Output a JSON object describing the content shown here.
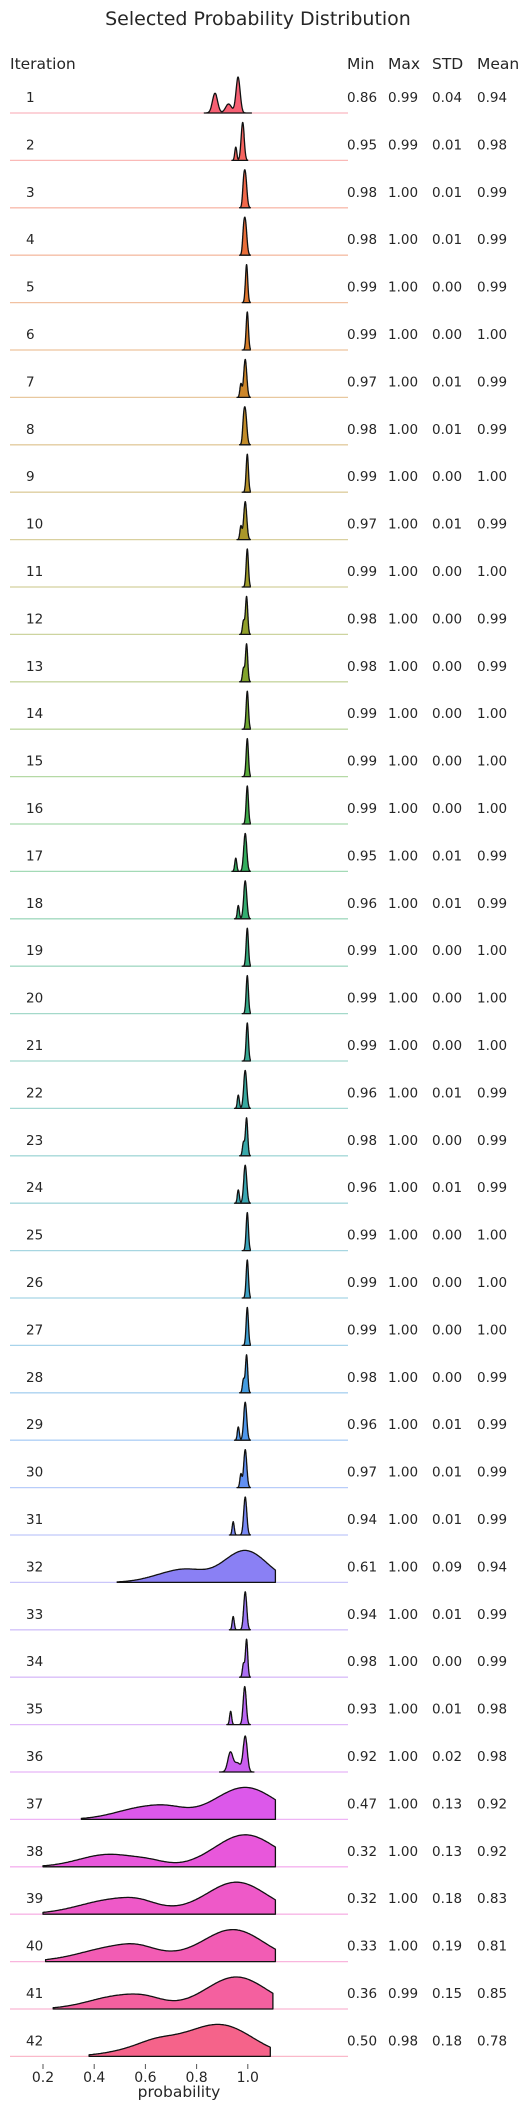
{
  "chart_data": {
    "type": "ridgeline",
    "title": "Selected Probability Distribution",
    "xlabel": "probability",
    "row_header": "Iteration",
    "stat_headers": [
      "Min",
      "Max",
      "STD",
      "Mean"
    ],
    "xlim": [
      0.15,
      1.45
    ],
    "xticks": [
      0.2,
      0.4,
      0.6,
      0.8,
      1.0
    ],
    "xtick_labels": [
      "0.2",
      "0.4",
      "0.6",
      "0.8",
      "1.0"
    ],
    "grid": false,
    "rows": [
      {
        "iteration": "1",
        "min": "0.86",
        "max": "0.99",
        "std": "0.04",
        "mean": "0.94",
        "color": "#f66073"
      },
      {
        "iteration": "2",
        "min": "0.95",
        "max": "0.99",
        "std": "0.01",
        "mean": "0.98",
        "color": "#f5635f"
      },
      {
        "iteration": "3",
        "min": "0.98",
        "max": "1.00",
        "std": "0.01",
        "mean": "0.99",
        "color": "#f0684a"
      },
      {
        "iteration": "4",
        "min": "0.98",
        "max": "1.00",
        "std": "0.01",
        "mean": "0.99",
        "color": "#e96e3a"
      },
      {
        "iteration": "5",
        "min": "0.99",
        "max": "1.00",
        "std": "0.00",
        "mean": "0.99",
        "color": "#e0762e"
      },
      {
        "iteration": "6",
        "min": "0.99",
        "max": "1.00",
        "std": "0.00",
        "mean": "1.00",
        "color": "#d67e2a"
      },
      {
        "iteration": "7",
        "min": "0.97",
        "max": "1.00",
        "std": "0.01",
        "mean": "0.99",
        "color": "#cc862a"
      },
      {
        "iteration": "8",
        "min": "0.98",
        "max": "1.00",
        "std": "0.01",
        "mean": "0.99",
        "color": "#c28c2a"
      },
      {
        "iteration": "9",
        "min": "0.99",
        "max": "1.00",
        "std": "0.00",
        "mean": "1.00",
        "color": "#b6922a"
      },
      {
        "iteration": "10",
        "min": "0.97",
        "max": "1.00",
        "std": "0.01",
        "mean": "0.99",
        "color": "#aa972a"
      },
      {
        "iteration": "11",
        "min": "0.99",
        "max": "1.00",
        "std": "0.00",
        "mean": "1.00",
        "color": "#9e9c2a"
      },
      {
        "iteration": "12",
        "min": "0.98",
        "max": "1.00",
        "std": "0.00",
        "mean": "0.99",
        "color": "#91a02b"
      },
      {
        "iteration": "13",
        "min": "0.98",
        "max": "1.00",
        "std": "0.00",
        "mean": "0.99",
        "color": "#82a42d"
      },
      {
        "iteration": "14",
        "min": "0.99",
        "max": "1.00",
        "std": "0.00",
        "mean": "1.00",
        "color": "#70a830"
      },
      {
        "iteration": "15",
        "min": "0.99",
        "max": "1.00",
        "std": "0.00",
        "mean": "1.00",
        "color": "#5aab38"
      },
      {
        "iteration": "16",
        "min": "0.99",
        "max": "1.00",
        "std": "0.00",
        "mean": "1.00",
        "color": "#3fae4a"
      },
      {
        "iteration": "17",
        "min": "0.95",
        "max": "1.00",
        "std": "0.01",
        "mean": "0.99",
        "color": "#33ae5e"
      },
      {
        "iteration": "18",
        "min": "0.96",
        "max": "1.00",
        "std": "0.01",
        "mean": "0.99",
        "color": "#34ad70"
      },
      {
        "iteration": "19",
        "min": "0.99",
        "max": "1.00",
        "std": "0.00",
        "mean": "1.00",
        "color": "#35ac7e"
      },
      {
        "iteration": "20",
        "min": "0.99",
        "max": "1.00",
        "std": "0.00",
        "mean": "1.00",
        "color": "#36ab8a"
      },
      {
        "iteration": "21",
        "min": "0.99",
        "max": "1.00",
        "std": "0.00",
        "mean": "1.00",
        "color": "#37aa95"
      },
      {
        "iteration": "22",
        "min": "0.96",
        "max": "1.00",
        "std": "0.01",
        "mean": "0.99",
        "color": "#38a99f"
      },
      {
        "iteration": "23",
        "min": "0.98",
        "max": "1.00",
        "std": "0.00",
        "mean": "0.99",
        "color": "#39a8a9"
      },
      {
        "iteration": "24",
        "min": "0.96",
        "max": "1.00",
        "std": "0.01",
        "mean": "0.99",
        "color": "#3aa7b2"
      },
      {
        "iteration": "25",
        "min": "0.99",
        "max": "1.00",
        "std": "0.00",
        "mean": "1.00",
        "color": "#3ba5bc"
      },
      {
        "iteration": "26",
        "min": "0.99",
        "max": "1.00",
        "std": "0.00",
        "mean": "1.00",
        "color": "#3da3c7"
      },
      {
        "iteration": "27",
        "min": "0.99",
        "max": "1.00",
        "std": "0.00",
        "mean": "1.00",
        "color": "#3fa0d3"
      },
      {
        "iteration": "28",
        "min": "0.98",
        "max": "1.00",
        "std": "0.00",
        "mean": "0.99",
        "color": "#449ce0"
      },
      {
        "iteration": "29",
        "min": "0.96",
        "max": "1.00",
        "std": "0.01",
        "mean": "0.99",
        "color": "#4f97ec"
      },
      {
        "iteration": "30",
        "min": "0.97",
        "max": "1.00",
        "std": "0.01",
        "mean": "0.99",
        "color": "#6290f3"
      },
      {
        "iteration": "31",
        "min": "0.94",
        "max": "1.00",
        "std": "0.01",
        "mean": "0.99",
        "color": "#7888f4"
      },
      {
        "iteration": "32",
        "min": "0.61",
        "max": "1.00",
        "std": "0.09",
        "mean": "0.94",
        "color": "#8a80f4"
      },
      {
        "iteration": "33",
        "min": "0.94",
        "max": "1.00",
        "std": "0.01",
        "mean": "0.99",
        "color": "#9b78f4"
      },
      {
        "iteration": "34",
        "min": "0.98",
        "max": "1.00",
        "std": "0.00",
        "mean": "0.99",
        "color": "#ab6ff4"
      },
      {
        "iteration": "35",
        "min": "0.93",
        "max": "1.00",
        "std": "0.01",
        "mean": "0.98",
        "color": "#bb66f3"
      },
      {
        "iteration": "36",
        "min": "0.92",
        "max": "1.00",
        "std": "0.02",
        "mean": "0.98",
        "color": "#cb5ef0"
      },
      {
        "iteration": "37",
        "min": "0.47",
        "max": "1.00",
        "std": "0.13",
        "mean": "0.92",
        "color": "#dc58ea"
      },
      {
        "iteration": "38",
        "min": "0.32",
        "max": "1.00",
        "std": "0.13",
        "mean": "0.92",
        "color": "#e857db"
      },
      {
        "iteration": "39",
        "min": "0.32",
        "max": "1.00",
        "std": "0.18",
        "mean": "0.83",
        "color": "#ee59c8"
      },
      {
        "iteration": "40",
        "min": "0.33",
        "max": "1.00",
        "std": "0.19",
        "mean": "0.81",
        "color": "#f25cb4"
      },
      {
        "iteration": "41",
        "min": "0.36",
        "max": "0.99",
        "std": "0.15",
        "mean": "0.85",
        "color": "#f4609f"
      },
      {
        "iteration": "42",
        "min": "0.50",
        "max": "0.98",
        "std": "0.18",
        "mean": "0.78",
        "color": "#f5638a"
      }
    ]
  }
}
